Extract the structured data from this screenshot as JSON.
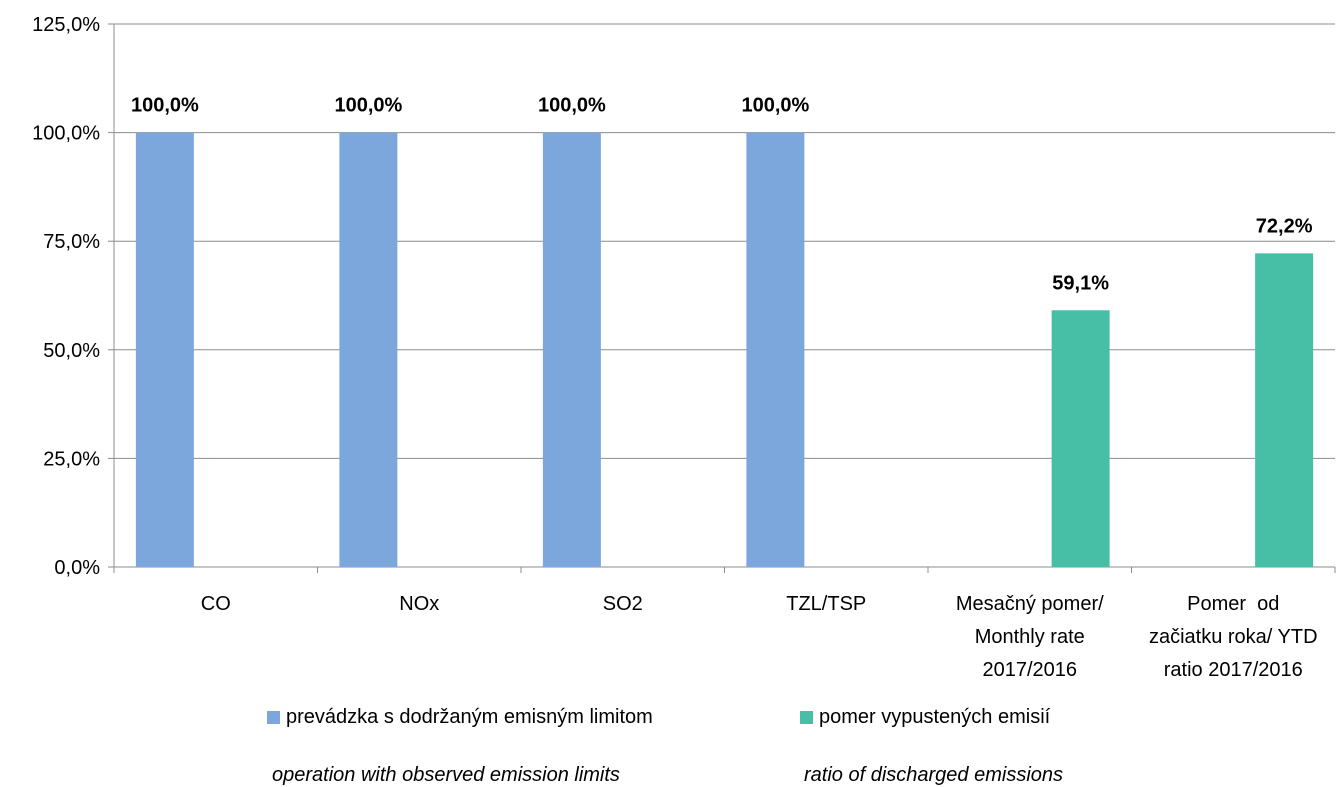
{
  "chart_data": {
    "type": "bar",
    "categories": [
      [
        "CO"
      ],
      [
        "NOx"
      ],
      [
        "SO2"
      ],
      [
        "TZL/TSP"
      ],
      [
        "Mesačný pomer/",
        "Monthly rate",
        "2017/2016"
      ],
      [
        "Pomer  od",
        "začiatku roka/ YTD",
        "ratio 2017/2016"
      ]
    ],
    "series": [
      {
        "name": "prevádzka s dodržaným emisným limitom",
        "name_en": "operation with observed emission limits",
        "color": "#7BA7DD",
        "values": [
          100.0,
          100.0,
          100.0,
          100.0,
          null,
          null
        ],
        "labels": [
          "100,0%",
          "100,0%",
          "100,0%",
          "100,0%",
          "",
          ""
        ]
      },
      {
        "name": "pomer vypustených emisií",
        "name_en": "ratio of discharged emissions",
        "color": "#47BFA7",
        "values": [
          null,
          null,
          null,
          null,
          59.1,
          72.2
        ],
        "labels": [
          "",
          "",
          "",
          "",
          "59,1%",
          "72,2%"
        ]
      }
    ],
    "ylim": [
      0,
      125
    ],
    "yticks": [
      0,
      25,
      50,
      75,
      100,
      125
    ],
    "ytick_labels": [
      "0,0%",
      "25,0%",
      "50,0%",
      "75,0%",
      "100,0%",
      "125,0%"
    ],
    "grid": true,
    "legend_position": "bottom"
  }
}
